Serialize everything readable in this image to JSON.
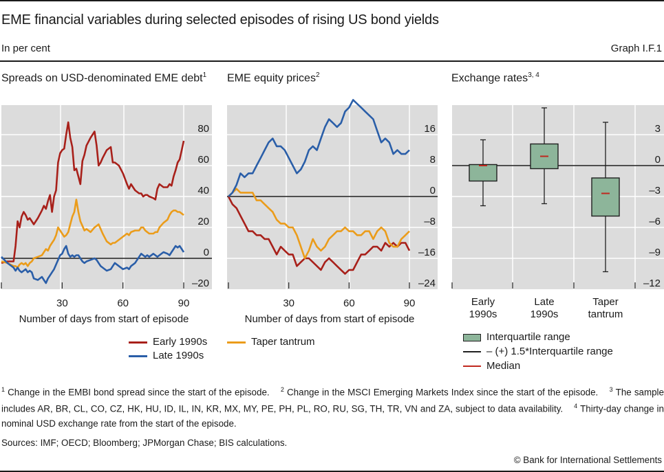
{
  "header": {
    "title": "EME financial variables during selected episodes of rising US bond yields",
    "subtitle": "In per cent",
    "graph_number": "Graph I.F.1"
  },
  "colors": {
    "early_1990s": "#a8201a",
    "late_1990s": "#2a5ea8",
    "taper_tantrum": "#eb9c1a",
    "plot_bg": "#dcdcdc",
    "grid": "#ffffff",
    "box_fill": "#8db59a",
    "box_stroke": "#1f1f1f",
    "median": "#c0281e"
  },
  "panels": [
    {
      "title": "Spreads on USD-denominated EME debt",
      "footnote_ref": "1"
    },
    {
      "title": "EME equity prices",
      "footnote_ref": "2"
    },
    {
      "title": "Exchange rates",
      "footnote_ref": "3, 4"
    }
  ],
  "legend_lines": [
    {
      "label": "Early 1990s",
      "series": "early_1990s"
    },
    {
      "label": "Late 1990s",
      "series": "late_1990s"
    },
    {
      "label": "Taper tantrum",
      "series": "taper_tantrum"
    }
  ],
  "legend_box": [
    {
      "label": "Interquartile range",
      "kind": "box"
    },
    {
      "label": "– (+) 1.5*Interquartile range",
      "kind": "whisker"
    },
    {
      "label": "Median",
      "kind": "median"
    }
  ],
  "chart_data": [
    {
      "type": "line",
      "title": "Spreads on USD-denominated EME debt",
      "xlabel": "Number of days from start of episode",
      "ylabel": "",
      "xlim": [
        0,
        90
      ],
      "ylim": [
        -20,
        100
      ],
      "xticks": [
        0,
        30,
        60,
        90
      ],
      "xtick_labels": [
        "",
        "30",
        "60",
        "90"
      ],
      "yticks": [
        -20,
        0,
        20,
        40,
        60,
        80
      ],
      "ytick_labels": [
        "–20",
        "0",
        "20",
        "40",
        "60",
        "80"
      ],
      "grid": true,
      "x": [
        0,
        3,
        6,
        7,
        8,
        9,
        10,
        11,
        12,
        13,
        14,
        15,
        16,
        18,
        20,
        21,
        22,
        23,
        24,
        25,
        26,
        27,
        28,
        29,
        30,
        31,
        32,
        33,
        34,
        35,
        36,
        37,
        38,
        39,
        40,
        41,
        42,
        44,
        46,
        47,
        48,
        49,
        50,
        52,
        54,
        55,
        56,
        58,
        60,
        62,
        63,
        64,
        66,
        68,
        69,
        70,
        71,
        72,
        73,
        75,
        76,
        77,
        78,
        80,
        82,
        83,
        84,
        85,
        86,
        87,
        88,
        89,
        90
      ],
      "series": [
        {
          "name": "Early 1990s",
          "key": "early_1990s",
          "values": [
            -3,
            -2,
            -2,
            8,
            24,
            20,
            27,
            30,
            28,
            25,
            26,
            24,
            22,
            26,
            31,
            34,
            32,
            37,
            41,
            30,
            40,
            44,
            62,
            68,
            70,
            71,
            80,
            88,
            78,
            72,
            57,
            58,
            53,
            48,
            63,
            67,
            73,
            78,
            82,
            73,
            60,
            62,
            65,
            70,
            72,
            62,
            62,
            60,
            55,
            48,
            45,
            48,
            44,
            42,
            42,
            40,
            41,
            41,
            40,
            39,
            38,
            45,
            48,
            46,
            46,
            48,
            47,
            53,
            57,
            62,
            64,
            70,
            76
          ]
        },
        {
          "name": "Late 1990s",
          "key": "late_1990s",
          "values": [
            1,
            -3,
            -6,
            -8,
            -6,
            -8,
            -9,
            -8,
            -7,
            -9,
            -8,
            -9,
            -13,
            -14,
            -12,
            -14,
            -16,
            -13,
            -11,
            -9,
            -7,
            -4,
            -1,
            2,
            3,
            6,
            8,
            3,
            1,
            2,
            1,
            2,
            2,
            0,
            -2,
            -3,
            -2,
            -1,
            0,
            -1,
            -3,
            -5,
            -6,
            -8,
            -7,
            -5,
            -3,
            -5,
            -7,
            -6,
            -7,
            -5,
            -3,
            1,
            3,
            2,
            1,
            2,
            1,
            3,
            2,
            1,
            2,
            4,
            3,
            2,
            4,
            6,
            8,
            7,
            8,
            6,
            4
          ]
        },
        {
          "name": "Taper tantrum",
          "key": "taper_tantrum",
          "values": [
            -2,
            -3,
            -5,
            -5,
            -6,
            -4,
            -3,
            -4,
            -3,
            -5,
            -3,
            -2,
            0,
            1,
            2,
            4,
            6,
            5,
            8,
            10,
            12,
            15,
            20,
            18,
            16,
            14,
            15,
            17,
            22,
            27,
            30,
            38,
            30,
            24,
            21,
            18,
            19,
            17,
            20,
            21,
            22,
            19,
            16,
            11,
            9,
            10,
            10,
            12,
            14,
            16,
            15,
            17,
            18,
            18,
            20,
            20,
            18,
            17,
            16,
            16,
            17,
            17,
            20,
            23,
            25,
            28,
            30,
            31,
            31,
            30,
            30,
            29,
            28
          ]
        }
      ]
    },
    {
      "type": "line",
      "title": "EME equity prices",
      "xlabel": "Number of days from start of episode",
      "ylabel": "",
      "xlim": [
        0,
        90
      ],
      "ylim": [
        -24,
        24
      ],
      "xticks": [
        0,
        30,
        60,
        90
      ],
      "xtick_labels": [
        "",
        "30",
        "60",
        "90"
      ],
      "yticks": [
        -24,
        -16,
        -8,
        0,
        8,
        16
      ],
      "ytick_labels": [
        "–24",
        "–16",
        "–8",
        "0",
        "8",
        "16"
      ],
      "grid": true,
      "x": [
        0,
        2,
        4,
        6,
        8,
        10,
        12,
        14,
        16,
        18,
        20,
        22,
        24,
        26,
        28,
        30,
        32,
        34,
        36,
        38,
        40,
        42,
        44,
        46,
        48,
        50,
        52,
        54,
        56,
        58,
        60,
        62,
        64,
        66,
        68,
        70,
        72,
        74,
        76,
        78,
        80,
        82,
        84,
        86,
        88,
        90
      ],
      "series": [
        {
          "name": "Early 1990s",
          "key": "early_1990s",
          "values": [
            0,
            -2,
            -3,
            -5,
            -7,
            -9,
            -9,
            -10,
            -10,
            -11,
            -11,
            -13,
            -15,
            -13,
            -14,
            -15,
            -15,
            -18,
            -17,
            -16,
            -16,
            -17,
            -18,
            -19,
            -17,
            -16,
            -17,
            -18,
            -19,
            -20,
            -19,
            -19,
            -17,
            -15,
            -15,
            -14,
            -13,
            -13,
            -14,
            -12,
            -13,
            -12,
            -13,
            -12,
            -12,
            -14
          ]
        },
        {
          "name": "Late 1990s",
          "key": "late_1990s",
          "values": [
            0,
            1,
            3,
            6,
            5,
            6,
            6,
            8,
            10,
            12,
            14,
            15,
            13,
            13,
            12,
            10,
            8,
            6,
            7,
            9,
            12,
            13,
            12,
            15,
            18,
            20,
            19,
            18,
            19,
            22,
            23,
            25,
            24,
            23,
            22,
            21,
            20,
            17,
            14,
            15,
            14,
            11,
            12,
            11,
            11,
            12
          ]
        },
        {
          "name": "Taper tantrum",
          "key": "taper_tantrum",
          "values": [
            0,
            1,
            2,
            1,
            1,
            1,
            1,
            -1,
            -1,
            -2,
            -3,
            -4,
            -6,
            -7,
            -7,
            -8,
            -8,
            -10,
            -13,
            -16,
            -14,
            -11,
            -13,
            -14,
            -13,
            -11,
            -10,
            -9,
            -9,
            -8,
            -9,
            -9,
            -10,
            -10,
            -9,
            -9,
            -11,
            -9,
            -8,
            -9,
            -12,
            -13,
            -13,
            -11,
            -10,
            -9
          ]
        }
      ]
    },
    {
      "type": "box",
      "title": "Exchange rates",
      "xlabel": "",
      "ylabel": "",
      "ylim": [
        -12,
        6
      ],
      "yticks": [
        -12,
        -9,
        -6,
        -3,
        0,
        3
      ],
      "ytick_labels": [
        "–12",
        "–9",
        "–6",
        "–3",
        "0",
        "3"
      ],
      "grid": true,
      "categories": [
        "Early\n1990s",
        "Late\n1990s",
        "Taper\ntantrum"
      ],
      "category_lines": [
        [
          "Early",
          "1990s"
        ],
        [
          "Late",
          "1990s"
        ],
        [
          "Taper",
          "tantrum"
        ]
      ],
      "boxes": [
        {
          "category": "Early 1990s",
          "whisker_low": -3.9,
          "q1": -1.5,
          "median": 0.0,
          "q3": 0.1,
          "whisker_high": 2.5
        },
        {
          "category": "Late 1990s",
          "whisker_low": -3.7,
          "q1": -0.3,
          "median": 0.9,
          "q3": 2.1,
          "whisker_high": 5.6
        },
        {
          "category": "Taper tantrum",
          "whisker_low": -10.3,
          "q1": -4.9,
          "median": -2.7,
          "q3": -1.2,
          "whisker_high": 4.2
        }
      ]
    }
  ],
  "footnotes": [
    {
      "ref": "1",
      "text": "Change in the EMBI bond spread since the start of the episode."
    },
    {
      "ref": "2",
      "text": "Change in the MSCI Emerging Markets Index since the start of the episode."
    },
    {
      "ref": "3",
      "text": "The sample includes AR, BR, CL, CO, CZ, HK, HU, ID, IL, IN, KR, MX, MY, PE, PH, PL, RO, RU, SG, TH, TR, VN and ZA, subject to data availability."
    },
    {
      "ref": "4",
      "text": "Thirty-day change in nominal USD exchange rate from the start of the episode."
    }
  ],
  "sources": "Sources: IMF; OECD; Bloomberg; JPMorgan Chase; BIS calculations.",
  "copyright": "© Bank for International Settlements"
}
